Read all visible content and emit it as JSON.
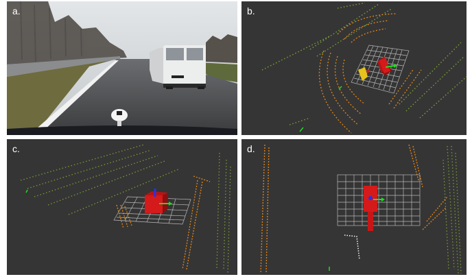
{
  "panels": [
    {
      "id": "a",
      "label": "a.",
      "kind": "camera-photo"
    },
    {
      "id": "b",
      "label": "b.",
      "kind": "lidar-point-cloud"
    },
    {
      "id": "c",
      "label": "c.",
      "kind": "lidar-point-cloud"
    },
    {
      "id": "d",
      "label": "d.",
      "kind": "lidar-point-cloud"
    }
  ],
  "colors": {
    "viz_background": "#353535",
    "grid": "#b8b8b8",
    "vehicle_box": "#d41a1a",
    "axis_x": "#22dd22",
    "axis_z": "#2233ee",
    "points_green": "#8fbf3a",
    "points_orange": "#d8821c",
    "points_yellow": "#e6c21a",
    "sky": "#cfd3d6",
    "road": "#4a4b4d",
    "grass": "#6b6a3a",
    "van": "#e9eaea"
  }
}
